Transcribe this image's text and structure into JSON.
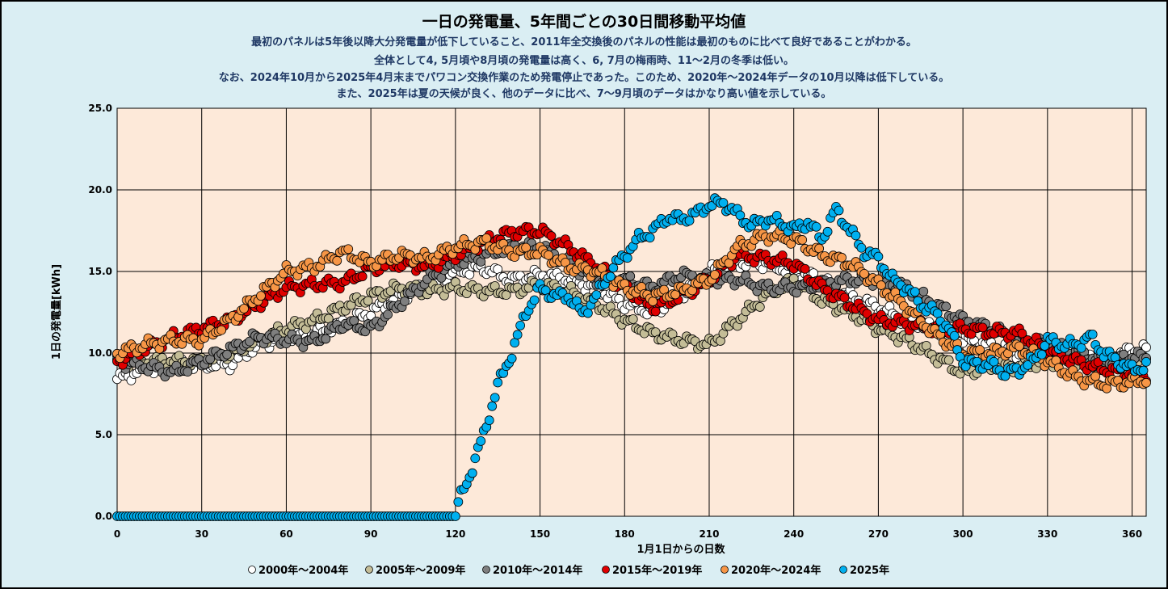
{
  "chart_data": {
    "type": "scatter",
    "title": "一日の発電量、5年間ごとの30日間移動平均値",
    "subtitle": [
      "最初のパネルは5年後以降大分発電量が低下していること、2011年全交換後のパネルの性能は最初のものに比べて良好であることがわかる。",
      "全体として4, 5月頃や8月頃の発電量は高く、6, 7月の梅雨時、11～2月の冬季は低い。",
      "なお、2024年10月から2025年4月末までパワコン交換作業のため発電停止であった。このため、2020年～2024年データの10月以降は低下している。",
      "また、2025年は夏の天候が良く、他のデータに比べ、7～9月頃のデータはかなり高い値を示している。"
    ],
    "xlabel": "1月1日からの日数",
    "ylabel": "1日の発電量[kWh]",
    "xlim": [
      0,
      365
    ],
    "ylim": [
      0,
      25
    ],
    "xticks": [
      "0",
      "30",
      "60",
      "90",
      "120",
      "150",
      "180",
      "210",
      "240",
      "270",
      "300",
      "330",
      "360"
    ],
    "yticks": [
      "0.0",
      "5.0",
      "10.0",
      "15.0",
      "20.0",
      "25.0"
    ],
    "grid": true,
    "legend_position": "bottom",
    "sample_days": [
      0,
      10,
      20,
      30,
      40,
      50,
      60,
      70,
      80,
      90,
      100,
      110,
      120,
      130,
      140,
      150,
      160,
      170,
      180,
      190,
      200,
      210,
      220,
      230,
      240,
      250,
      260,
      270,
      280,
      290,
      300,
      310,
      320,
      330,
      340,
      350,
      360,
      365
    ],
    "series": [
      {
        "name": "2000年～2004年",
        "color": "#ffffff",
        "values": [
          8.4,
          9.0,
          9.3,
          9.3,
          9.3,
          10.5,
          11,
          11.2,
          11.8,
          12.5,
          13.5,
          14,
          15,
          15.2,
          14.5,
          14.8,
          14.5,
          14,
          13,
          12.5,
          13.5,
          15,
          15.5,
          15.5,
          15,
          14.5,
          13.5,
          12.8,
          12,
          11.5,
          10.8,
          10.5,
          10,
          10,
          9.8,
          9.5,
          10.2,
          10.2
        ]
      },
      {
        "name": "2005年～2009年",
        "color": "#c4bd97",
        "values": [
          9.5,
          9.5,
          9.5,
          9.5,
          10,
          10.8,
          11.5,
          12,
          12.8,
          13.5,
          14,
          13.8,
          14,
          13.8,
          13.8,
          14.2,
          13.8,
          13,
          12,
          11.2,
          10.8,
          10.5,
          12,
          13.5,
          14.5,
          13.2,
          12.5,
          11.5,
          10.8,
          9.8,
          8.8,
          9.2,
          9.2,
          9.5,
          9.5,
          9.3,
          9.5,
          9.6
        ]
      },
      {
        "name": "2010年～2014年",
        "color": "#7f7f7f",
        "values": [
          9.5,
          9.2,
          8.8,
          9.5,
          10.2,
          11,
          10.8,
          10.7,
          11.8,
          11.5,
          13,
          14.5,
          15.5,
          16,
          16.5,
          16.5,
          15.5,
          14.5,
          14.5,
          14,
          14.8,
          14.5,
          14.5,
          14,
          14,
          14.2,
          14.5,
          14.5,
          14,
          13,
          12,
          11.5,
          10.8,
          10.5,
          10,
          9.5,
          9.8,
          9.7
        ]
      },
      {
        "name": "2015年～2019年",
        "color": "#e00000",
        "values": [
          9.5,
          10.3,
          11,
          11.5,
          12,
          13,
          14,
          14.2,
          14.3,
          15.2,
          15.5,
          15.3,
          16,
          16.8,
          17.4,
          17.5,
          16.5,
          15.3,
          14,
          12.8,
          13.5,
          14.5,
          16,
          15.8,
          15.5,
          14,
          13,
          12,
          11.8,
          11.5,
          11.5,
          11.3,
          11.2,
          10.2,
          9.5,
          9.0,
          8.7,
          8.6
        ]
      },
      {
        "name": "2020年～2024年",
        "color": "#f79646",
        "values": [
          10,
          10.5,
          10.8,
          10.8,
          12,
          13.5,
          15,
          15.3,
          16.2,
          15.5,
          16,
          15.8,
          16.5,
          16.8,
          16.2,
          16.2,
          15.3,
          15,
          14,
          13.5,
          13.8,
          14.5,
          16.5,
          17.2,
          17,
          16,
          15.5,
          14.2,
          12.8,
          11.2,
          10,
          10,
          10.3,
          9.5,
          8.5,
          8.1,
          8.2,
          8.4
        ]
      }
    ],
    "series_2025": {
      "name": "2025年",
      "color": "#00b0f0",
      "sample_days": [
        0,
        120,
        121,
        125,
        130,
        135,
        140,
        145,
        150,
        155,
        160,
        165,
        170,
        175,
        180,
        185,
        190,
        195,
        200,
        205,
        210,
        215,
        220,
        225,
        230,
        235,
        240,
        245,
        250,
        255,
        260,
        265,
        270,
        275,
        280,
        285,
        290,
        295,
        300,
        305,
        310,
        315,
        320,
        325,
        330,
        335,
        340,
        345,
        350,
        355,
        360,
        365
      ],
      "values": [
        0,
        0,
        0.8,
        2.5,
        5,
        8,
        10,
        12.5,
        14,
        13.5,
        13.5,
        12.4,
        13.5,
        15,
        16,
        17,
        17.5,
        18.3,
        18.2,
        18.5,
        19.1,
        19.2,
        18.5,
        17.8,
        18.2,
        18,
        17.6,
        18,
        17,
        18.8,
        17.5,
        16.2,
        15.8,
        14.5,
        14,
        13,
        12.5,
        11.5,
        9.5,
        9.3,
        9.3,
        8.8,
        9.0,
        9.5,
        10.8,
        10.5,
        10.5,
        11,
        10,
        9.5,
        9,
        9.2
      ]
    }
  }
}
